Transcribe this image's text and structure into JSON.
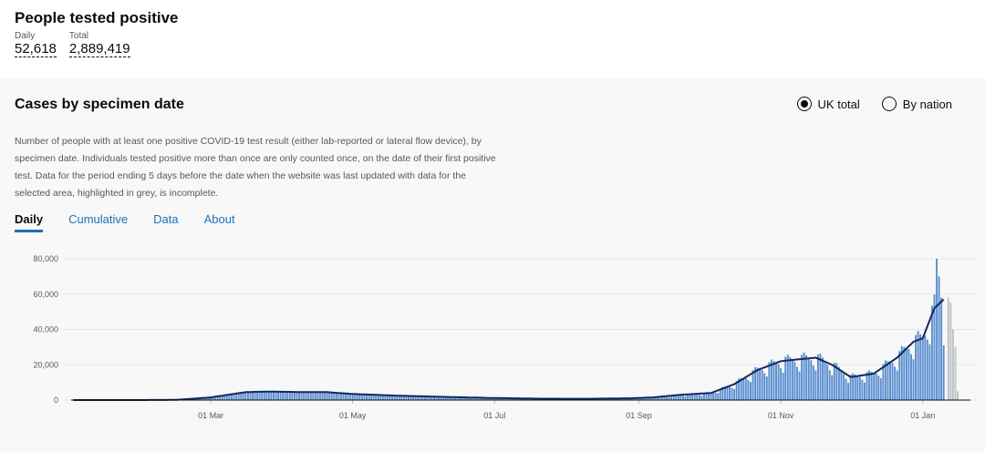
{
  "summary": {
    "title": "People tested positive",
    "daily_label": "Daily",
    "daily_value": "52,618",
    "total_label": "Total",
    "total_value": "2,889,419"
  },
  "panel": {
    "title": "Cases by specimen date",
    "radio_uk": "UK total",
    "radio_nation": "By nation",
    "selected": "UK total",
    "description": "Number of people with at least one positive COVID-19 test result (either lab-reported or lateral flow device), by specimen date. Individuals tested positive more than once are only counted once, on the date of their first positive test. Data for the period ending 5 days before the date when the website was last updated with data for the selected area, highlighted in grey, is incomplete.",
    "tabs": [
      "Daily",
      "Cumulative",
      "Data",
      "About"
    ]
  },
  "chart_data": {
    "type": "bar",
    "x_ticks": [
      "01 Mar",
      "01 May",
      "01 Jul",
      "01 Sep",
      "01 Nov",
      "01 Jan"
    ],
    "y_ticks": [
      "80,000",
      "60,000",
      "40,000",
      "20,000",
      "0"
    ],
    "ylim": [
      0,
      80000
    ],
    "colors": {
      "bar": "#5a8ed0",
      "incomplete": "#bfc1c3",
      "line": "#12285f"
    },
    "series": [
      {
        "values": [
          [
            1,
            0
          ],
          [
            30,
            10
          ],
          [
            45,
            100
          ],
          [
            60,
            1500
          ],
          [
            75,
            4500
          ],
          [
            85,
            4800
          ],
          [
            100,
            4500
          ],
          [
            110,
            4500
          ],
          [
            120,
            3500
          ],
          [
            140,
            2500
          ],
          [
            160,
            1800
          ],
          [
            180,
            1200
          ],
          [
            200,
            800
          ],
          [
            220,
            700
          ],
          [
            240,
            1000
          ],
          [
            250,
            1500
          ],
          [
            262,
            3000
          ],
          [
            275,
            4000
          ],
          [
            285,
            9000
          ],
          [
            295,
            17000
          ],
          [
            305,
            22000
          ],
          [
            312,
            23000
          ],
          [
            320,
            24000
          ],
          [
            327,
            20000
          ],
          [
            335,
            13000
          ],
          [
            345,
            15000
          ],
          [
            355,
            24000
          ],
          [
            362,
            33000
          ],
          [
            366,
            35000
          ],
          [
            371,
            52000
          ],
          [
            375,
            57000
          ]
        ]
      },
      {
        "values": [
          [
            377,
            58000
          ],
          [
            378,
            55000
          ],
          [
            379,
            40000
          ],
          [
            380,
            30000
          ],
          [
            381,
            5000
          ]
        ]
      }
    ]
  }
}
